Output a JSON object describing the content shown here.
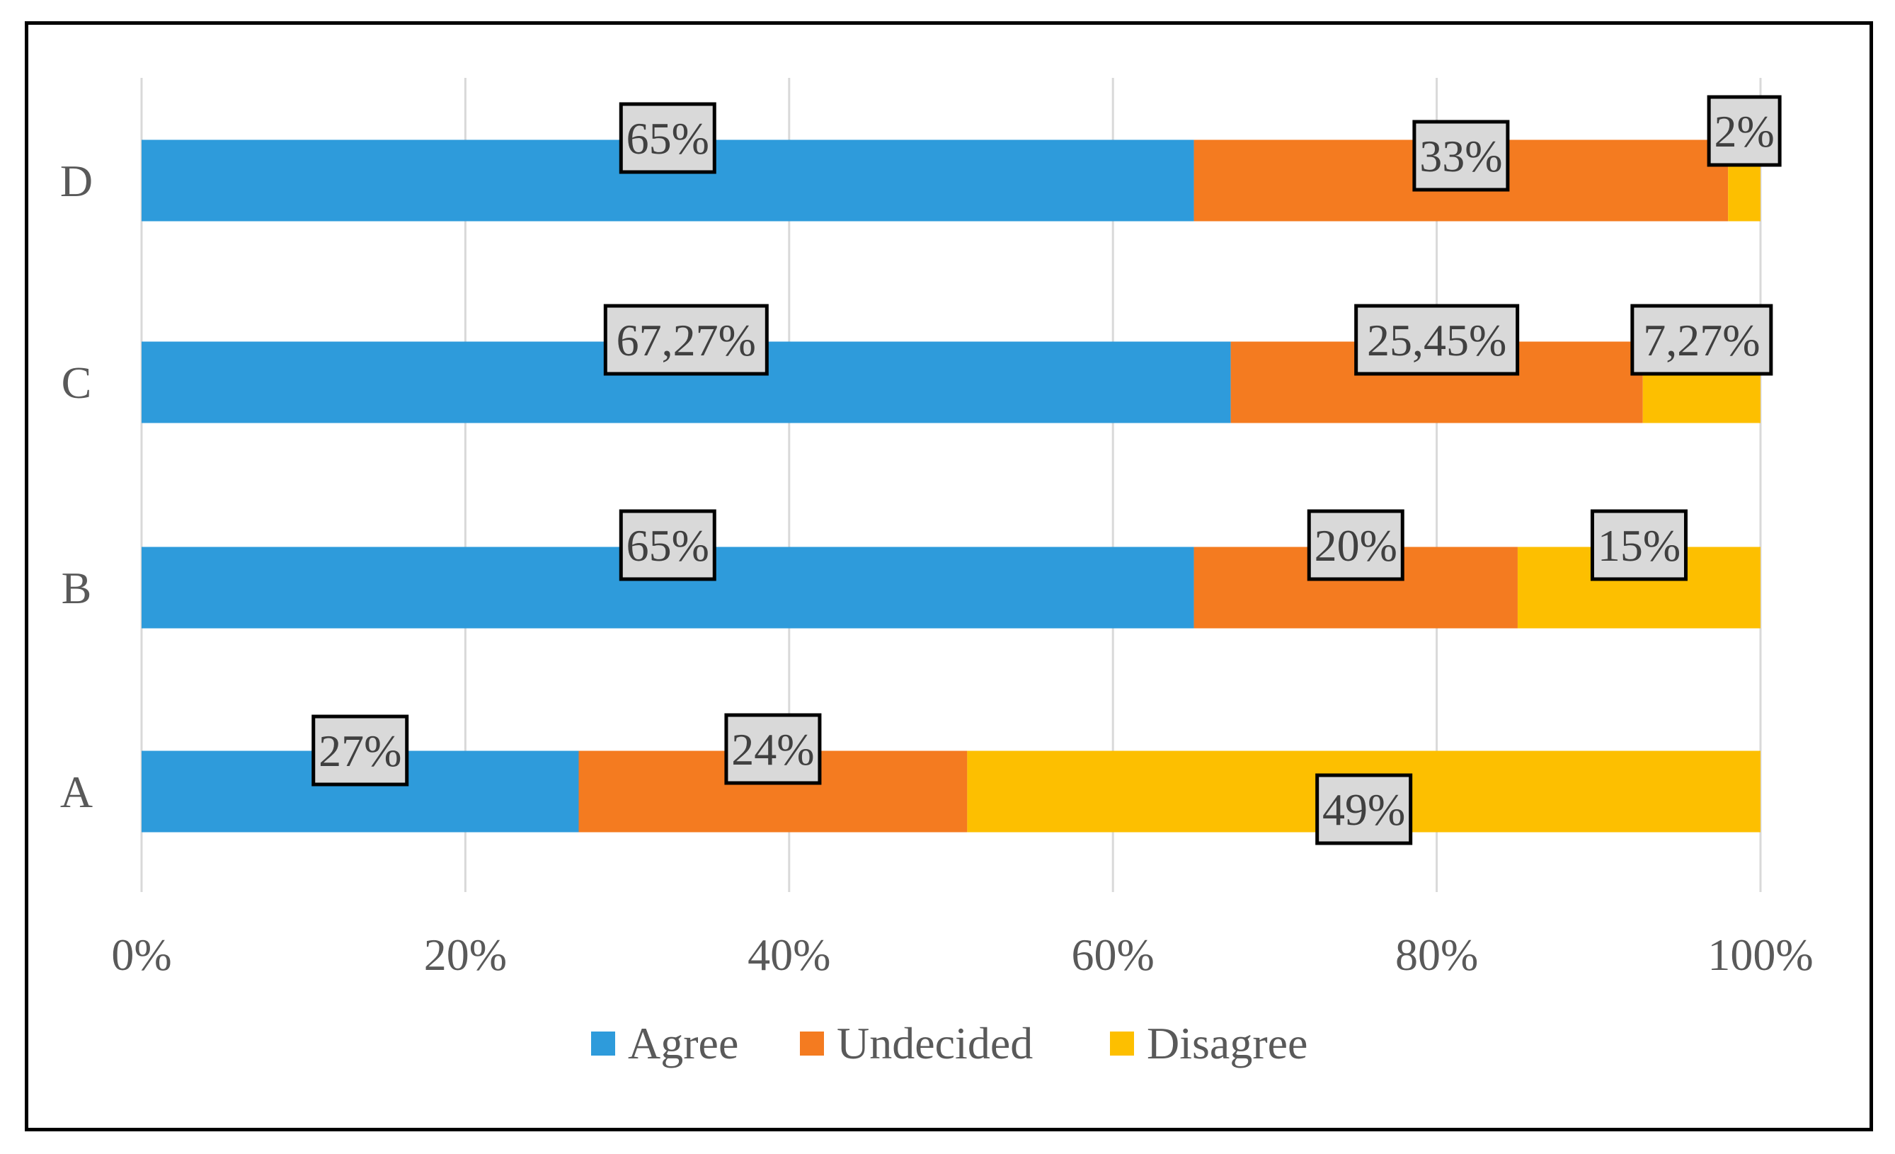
{
  "chart_data": {
    "type": "bar",
    "orientation": "horizontal",
    "stacked": true,
    "percent_stacked": true,
    "title": "",
    "xlabel": "",
    "ylabel": "",
    "categories": [
      "D",
      "C",
      "B",
      "A"
    ],
    "series": [
      {
        "name": "Agree",
        "color": "#2e9bdb",
        "values": [
          65,
          67.27,
          65,
          27
        ],
        "labels": [
          "65%",
          "67,27%",
          "65%",
          "27%"
        ]
      },
      {
        "name": "Undecided",
        "color": "#f47b20",
        "values": [
          33,
          25.45,
          20,
          24
        ],
        "labels": [
          "33%",
          "25,45%",
          "20%",
          "24%"
        ]
      },
      {
        "name": "Disagree",
        "color": "#fdbf00",
        "values": [
          2,
          7.27,
          15,
          49
        ],
        "labels": [
          "2%",
          "7,27%",
          "15%",
          "49%"
        ]
      }
    ],
    "xlim": [
      0,
      100
    ],
    "x_ticks": [
      "0%",
      "20%",
      "40%",
      "60%",
      "80%",
      "100%"
    ],
    "grid": "vertical",
    "legend_position": "bottom",
    "label_box_fill": "#d9d9d9"
  }
}
